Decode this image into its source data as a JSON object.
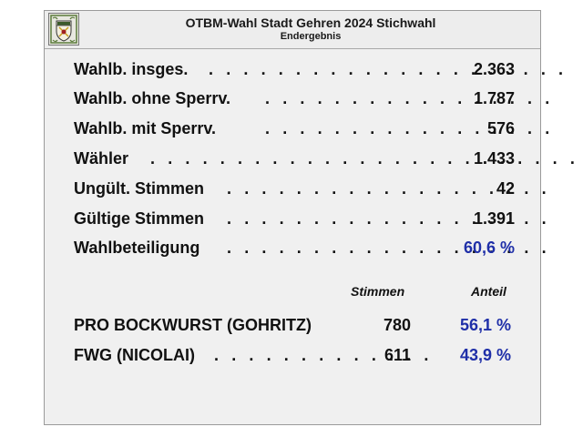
{
  "header": {
    "title": "OTBM-Wahl Stadt Gehren 2024 Stichwahl",
    "subtitle": "Endergebnis",
    "crest_icon": "coat-of-arms-icon"
  },
  "stats": [
    {
      "label": "Wahlb. insges.",
      "dots": ". . . . . . . . . . . . . . . . . . . . .",
      "value": "2.363"
    },
    {
      "label": "Wahlb. ohne Sperrv.",
      "dots": ". . . . . . . . . . . . . . . . .",
      "value": "1.787"
    },
    {
      "label": "Wahlb. mit Sperrv.",
      "dots": ". . . . . . . . . . . . . . . . .",
      "value": "576"
    },
    {
      "label": "Wähler",
      "dots": ". . . . . . . . . . . . . . . . . . . . . . . . .",
      "value": "1.433"
    },
    {
      "label": "Ungült. Stimmen",
      "dots": ". . . . . . . . . . . . . . . . . . .",
      "value": "42"
    },
    {
      "label": "Gültige Stimmen",
      "dots": ". . . . . . . . . . . . . . . . . . .",
      "value": "1.391"
    },
    {
      "label": "Wahlbeteiligung",
      "dots": ". . . . . . . . . . . . . . . . . . .",
      "value": "60,6 %"
    }
  ],
  "results": {
    "col_votes": "Stimmen",
    "col_share": "Anteil",
    "rows": [
      {
        "label": "PRO BOCKWURST (GOHRITZ)",
        "dots": "",
        "votes": "780",
        "share": "56,1 %"
      },
      {
        "label": "FWG (NICOLAI)",
        "dots": ". . . . . . . . . . . . .",
        "votes": "611",
        "share": "43,9 %"
      }
    ]
  },
  "colors": {
    "accent": "#1f2fa8",
    "panel_bg": "#f0f0f0"
  }
}
